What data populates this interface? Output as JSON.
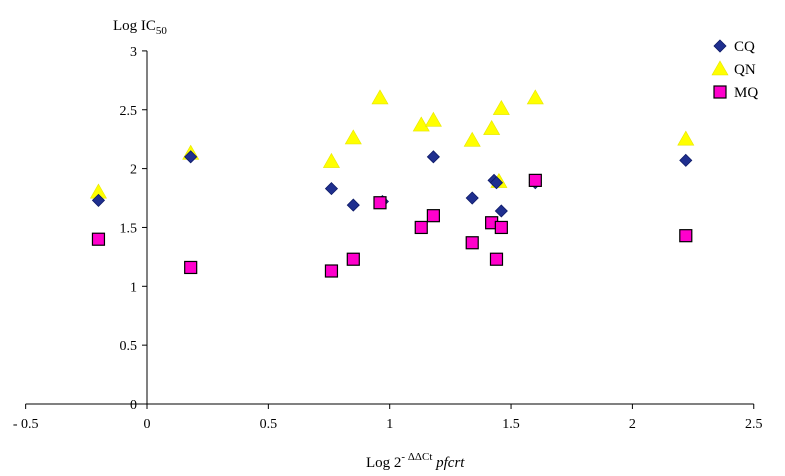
{
  "chart_data": {
    "type": "scatter",
    "title": "",
    "ylabel": {
      "main": "Log IC",
      "sub": "50"
    },
    "xlabel": {
      "base": "Log 2",
      "sup": "- ΔΔCt",
      "italic": " pfcrt"
    },
    "xlim": [
      -0.5,
      2.5
    ],
    "ylim": [
      0,
      3
    ],
    "xticks": [
      "- 0.5",
      "0",
      "0.5",
      "1",
      "1.5",
      "2",
      "2.5"
    ],
    "yticks": [
      "0",
      "0.5",
      "1",
      "1.5",
      "2",
      "2.5",
      "3"
    ],
    "grid": false,
    "legend_position": "top-right",
    "series": [
      {
        "name": "CQ",
        "marker": "diamond",
        "color": "#1f2f8f",
        "points": [
          [
            -0.2,
            1.73
          ],
          [
            0.18,
            2.1
          ],
          [
            0.76,
            1.83
          ],
          [
            0.85,
            1.69
          ],
          [
            0.97,
            1.72
          ],
          [
            1.18,
            2.1
          ],
          [
            1.34,
            1.75
          ],
          [
            1.43,
            1.9
          ],
          [
            1.44,
            1.88
          ],
          [
            1.46,
            1.64
          ],
          [
            1.6,
            1.88
          ],
          [
            2.22,
            2.07
          ]
        ]
      },
      {
        "name": "QN",
        "marker": "triangle",
        "color": "#ffff00",
        "points": [
          [
            -0.2,
            1.8
          ],
          [
            0.18,
            2.13
          ],
          [
            0.76,
            2.06
          ],
          [
            0.85,
            2.26
          ],
          [
            0.96,
            2.6
          ],
          [
            1.13,
            2.37
          ],
          [
            1.18,
            2.41
          ],
          [
            1.34,
            2.24
          ],
          [
            1.42,
            2.34
          ],
          [
            1.45,
            1.89
          ],
          [
            1.46,
            2.51
          ],
          [
            1.6,
            2.6
          ],
          [
            2.22,
            2.25
          ]
        ]
      },
      {
        "name": "MQ",
        "marker": "square",
        "color": "#ff00cc",
        "points": [
          [
            -0.2,
            1.4
          ],
          [
            0.18,
            1.16
          ],
          [
            0.76,
            1.13
          ],
          [
            0.85,
            1.23
          ],
          [
            0.96,
            1.71
          ],
          [
            1.13,
            1.5
          ],
          [
            1.18,
            1.6
          ],
          [
            1.34,
            1.37
          ],
          [
            1.42,
            1.54
          ],
          [
            1.44,
            1.23
          ],
          [
            1.46,
            1.5
          ],
          [
            1.6,
            1.9
          ],
          [
            2.22,
            1.43
          ]
        ]
      }
    ]
  }
}
